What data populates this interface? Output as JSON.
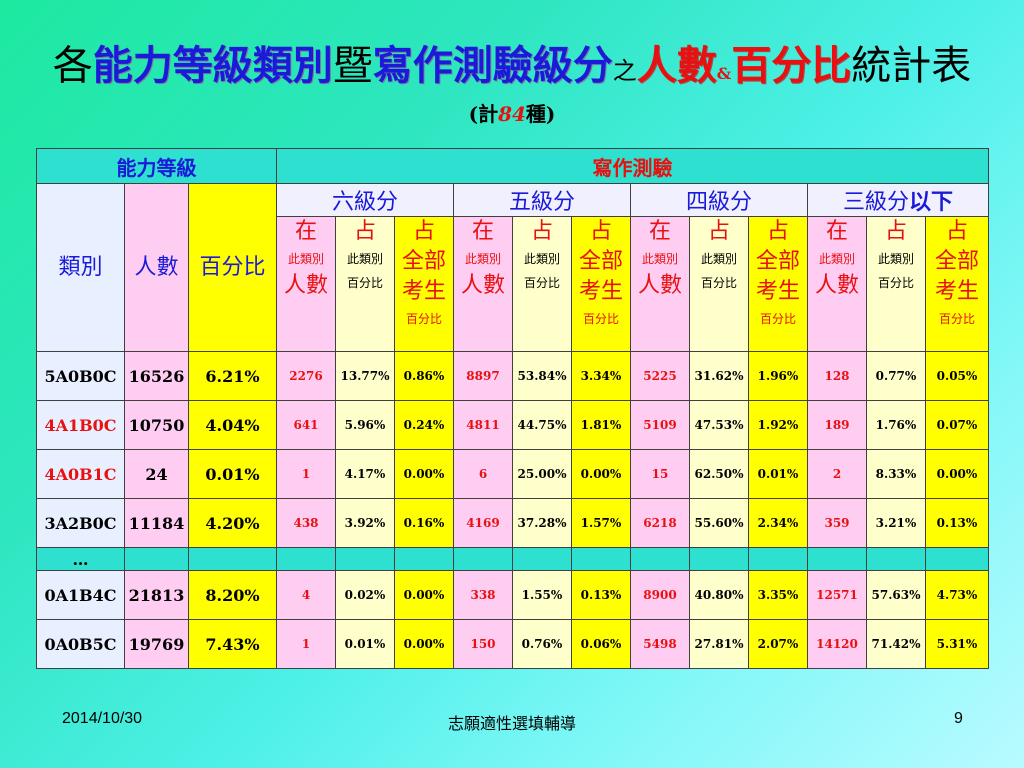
{
  "title": {
    "p1": "各",
    "p2": "能力等級類別",
    "p3": "暨",
    "p4": "寫作測驗級分",
    "p5": "之",
    "p6": "人數",
    "p7": "&",
    "p8": "百分比",
    "p9": "統計表"
  },
  "subtitle": {
    "pre": "(計",
    "num": "84",
    "post": "種)"
  },
  "table": {
    "group_headers": {
      "ability": "能力等級",
      "writing": "寫作測驗"
    },
    "score_headers": [
      "六級分",
      "五級分",
      "四級分",
      "三級分"
    ],
    "score_suffix": "以下",
    "left_headers": {
      "category": "類別",
      "count": "人數",
      "percent": "百分比"
    },
    "sub_headers": {
      "in_top": "在",
      "in_mid": "此類別",
      "in_bot": "人數",
      "pct_top": "占",
      "pct_mid": "此類別",
      "pct_bot": "百分比",
      "all_top": "占",
      "all_mid1": "全部",
      "all_mid2": "考生",
      "all_bot": "百分比"
    },
    "rows": [
      {
        "cat": "5A0B0C",
        "cat_red": false,
        "count": "16526",
        "pct": "6.21%",
        "cells": [
          "2276",
          "13.77%",
          "0.86%",
          "8897",
          "53.84%",
          "3.34%",
          "5225",
          "31.62%",
          "1.96%",
          "128",
          "0.77%",
          "0.05%"
        ]
      },
      {
        "cat": "4A1B0C",
        "cat_red": true,
        "count": "10750",
        "pct": "4.04%",
        "cells": [
          "641",
          "5.96%",
          "0.24%",
          "4811",
          "44.75%",
          "1.81%",
          "5109",
          "47.53%",
          "1.92%",
          "189",
          "1.76%",
          "0.07%"
        ]
      },
      {
        "cat": "4A0B1C",
        "cat_red": true,
        "count": "24",
        "pct": "0.01%",
        "cells": [
          "1",
          "4.17%",
          "0.00%",
          "6",
          "25.00%",
          "0.00%",
          "15",
          "62.50%",
          "0.01%",
          "2",
          "8.33%",
          "0.00%"
        ]
      },
      {
        "cat": "3A2B0C",
        "cat_red": false,
        "count": "11184",
        "pct": "4.20%",
        "cells": [
          "438",
          "3.92%",
          "0.16%",
          "4169",
          "37.28%",
          "1.57%",
          "6218",
          "55.60%",
          "2.34%",
          "359",
          "3.21%",
          "0.13%"
        ]
      },
      {
        "cat": "…",
        "cat_red": false,
        "count": "",
        "pct": "",
        "cells": [
          "",
          "",
          "",
          "",
          "",
          "",
          "",
          "",
          "",
          "",
          "",
          ""
        ],
        "ellipsis": true
      },
      {
        "cat": "0A1B4C",
        "cat_red": false,
        "count": "21813",
        "pct": "8.20%",
        "cells": [
          "4",
          "0.02%",
          "0.00%",
          "338",
          "1.55%",
          "0.13%",
          "8900",
          "40.80%",
          "3.35%",
          "12571",
          "57.63%",
          "4.73%"
        ]
      },
      {
        "cat": "0A0B5C",
        "cat_red": false,
        "count": "19769",
        "pct": "7.43%",
        "cells": [
          "1",
          "0.01%",
          "0.00%",
          "150",
          "0.76%",
          "0.06%",
          "5498",
          "27.81%",
          "2.07%",
          "14120",
          "71.42%",
          "5.31%"
        ]
      }
    ]
  },
  "footer": {
    "date": "2014/10/30",
    "center": "志願適性選填輔導",
    "page": "9"
  }
}
